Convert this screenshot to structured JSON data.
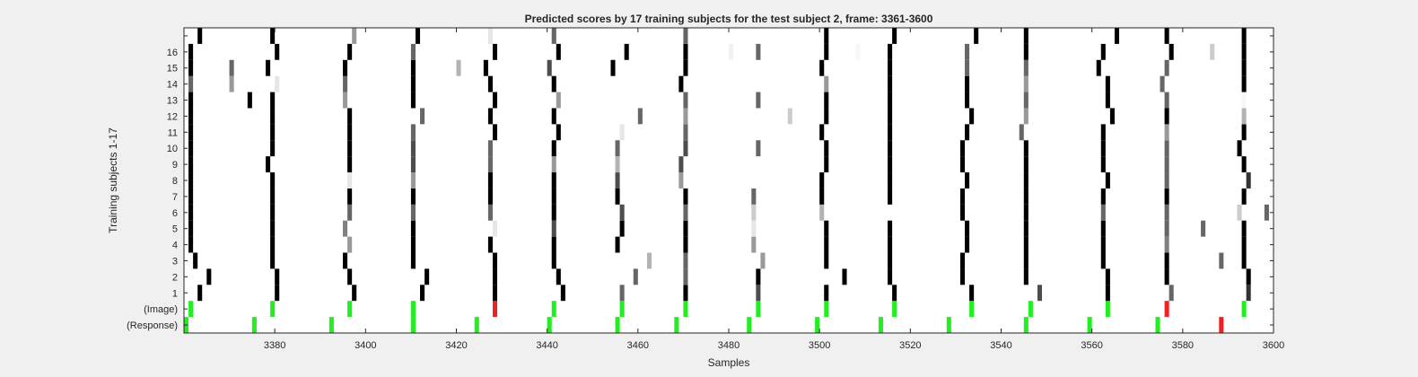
{
  "chart_data": {
    "type": "heatmap",
    "title": "Predicted scores by 17 training subjects for the test subject 2, frame: 3361-3600",
    "xlabel": "Samples",
    "ylabel": "Training subjects 1-17",
    "xlim": [
      3361,
      3600
    ],
    "x_ticks": [
      "3380",
      "3400",
      "3420",
      "3440",
      "3460",
      "3480",
      "3500",
      "3520",
      "3540",
      "3560",
      "3580",
      "3600"
    ],
    "row_labels": [
      "(Response)",
      "(Image)",
      "1",
      "2",
      "3",
      "4",
      "5",
      "6",
      "7",
      "8",
      "9",
      "10",
      "11",
      "12",
      "13",
      "14",
      "15",
      "16",
      ""
    ],
    "colors": {
      "background": "#ffffff",
      "correct": "#22ee22",
      "incorrect": "#ee2222",
      "figure": "#f0f0f0"
    },
    "response_marks": [
      {
        "x": 3361,
        "status": "correct"
      },
      {
        "x": 3376,
        "status": "correct"
      },
      {
        "x": 3393,
        "status": "correct"
      },
      {
        "x": 3411,
        "status": "correct"
      },
      {
        "x": 3425,
        "status": "correct"
      },
      {
        "x": 3441,
        "status": "correct"
      },
      {
        "x": 3456,
        "status": "correct"
      },
      {
        "x": 3469,
        "status": "correct"
      },
      {
        "x": 3485,
        "status": "correct"
      },
      {
        "x": 3500,
        "status": "correct"
      },
      {
        "x": 3514,
        "status": "correct"
      },
      {
        "x": 3529,
        "status": "correct"
      },
      {
        "x": 3546,
        "status": "correct"
      },
      {
        "x": 3560,
        "status": "correct"
      },
      {
        "x": 3575,
        "status": "correct"
      },
      {
        "x": 3589,
        "status": "incorrect"
      }
    ],
    "image_marks": [
      {
        "x": 3362,
        "status": "correct"
      },
      {
        "x": 3380,
        "status": "correct"
      },
      {
        "x": 3397,
        "status": "correct"
      },
      {
        "x": 3411,
        "status": "correct"
      },
      {
        "x": 3429,
        "status": "incorrect"
      },
      {
        "x": 3442,
        "status": "correct"
      },
      {
        "x": 3457,
        "status": "correct"
      },
      {
        "x": 3471,
        "status": "correct"
      },
      {
        "x": 3487,
        "status": "correct"
      },
      {
        "x": 3502,
        "status": "correct"
      },
      {
        "x": 3517,
        "status": "correct"
      },
      {
        "x": 3534,
        "status": "correct"
      },
      {
        "x": 3547,
        "status": "correct"
      },
      {
        "x": 3564,
        "status": "correct"
      },
      {
        "x": 3577,
        "status": "incorrect"
      },
      {
        "x": 3594,
        "status": "correct"
      }
    ],
    "subjects": [
      {
        "subject": 1,
        "cells": [
          [
            3364,
            0
          ],
          [
            3381,
            0
          ],
          [
            3398,
            0
          ],
          [
            3413,
            0
          ],
          [
            3429,
            0
          ],
          [
            3444,
            0
          ],
          [
            3457,
            0.4
          ],
          [
            3471,
            0
          ],
          [
            3487,
            0.3
          ],
          [
            3502,
            0
          ],
          [
            3517,
            0
          ],
          [
            3534,
            0
          ],
          [
            3549,
            0.3
          ],
          [
            3564,
            0
          ],
          [
            3578,
            0.4
          ],
          [
            3595,
            0.2
          ]
        ]
      },
      {
        "subject": 2,
        "cells": [
          [
            3366,
            0
          ],
          [
            3381,
            0
          ],
          [
            3397,
            0
          ],
          [
            3414,
            0
          ],
          [
            3429,
            0
          ],
          [
            3443,
            0
          ],
          [
            3460,
            0.4
          ],
          [
            3471,
            0.4
          ],
          [
            3487,
            0
          ],
          [
            3506,
            0
          ],
          [
            3516,
            0
          ],
          [
            3532,
            0
          ],
          [
            3546,
            0
          ],
          [
            3564,
            0
          ],
          [
            3577,
            0
          ],
          [
            3595,
            0
          ]
        ]
      },
      {
        "subject": 3,
        "cells": [
          [
            3363,
            0
          ],
          [
            3380,
            0
          ],
          [
            3396,
            0
          ],
          [
            3411,
            0
          ],
          [
            3429,
            0
          ],
          [
            3442,
            0
          ],
          [
            3463,
            0.7
          ],
          [
            3471,
            0.4
          ],
          [
            3488,
            0.6
          ],
          [
            3502,
            0
          ],
          [
            3516,
            0
          ],
          [
            3532,
            0
          ],
          [
            3546,
            0
          ],
          [
            3563,
            0
          ],
          [
            3577,
            0
          ],
          [
            3589,
            0.4
          ],
          [
            3594,
            0
          ]
        ]
      },
      {
        "subject": 4,
        "cells": [
          [
            3362,
            0
          ],
          [
            3380,
            0
          ],
          [
            3397,
            0.6
          ],
          [
            3411,
            0
          ],
          [
            3428,
            0
          ],
          [
            3442,
            0
          ],
          [
            3456,
            0
          ],
          [
            3471,
            0
          ],
          [
            3486,
            0.6
          ],
          [
            3502,
            0
          ],
          [
            3516,
            0
          ],
          [
            3533,
            0
          ],
          [
            3546,
            0
          ],
          [
            3563,
            0
          ],
          [
            3577,
            0.5
          ],
          [
            3594,
            0
          ]
        ]
      },
      {
        "subject": 5,
        "cells": [
          [
            3362,
            0
          ],
          [
            3380,
            0
          ],
          [
            3396,
            0.5
          ],
          [
            3411,
            0
          ],
          [
            3429,
            0.9
          ],
          [
            3442,
            0.3
          ],
          [
            3457,
            0
          ],
          [
            3471,
            0
          ],
          [
            3486,
            0.9
          ],
          [
            3502,
            0
          ],
          [
            3516,
            0
          ],
          [
            3533,
            0
          ],
          [
            3546,
            0
          ],
          [
            3563,
            0
          ],
          [
            3577,
            0.4
          ],
          [
            3585,
            0.4
          ],
          [
            3594,
            0
          ]
        ]
      },
      {
        "subject": 6,
        "cells": [
          [
            3362,
            0
          ],
          [
            3380,
            0
          ],
          [
            3397,
            0.4
          ],
          [
            3411,
            0.4
          ],
          [
            3428,
            0.4
          ],
          [
            3442,
            0
          ],
          [
            3457,
            0.3
          ],
          [
            3471,
            0.4
          ],
          [
            3486,
            0.8
          ],
          [
            3501,
            0.7
          ],
          [
            3532,
            0
          ],
          [
            3546,
            0
          ],
          [
            3563,
            0.4
          ],
          [
            3577,
            0.4
          ],
          [
            3593,
            0.8
          ],
          [
            3599,
            0.4
          ]
        ]
      },
      {
        "subject": 7,
        "cells": [
          [
            3362,
            0
          ],
          [
            3380,
            0
          ],
          [
            3397,
            0
          ],
          [
            3411,
            0
          ],
          [
            3428,
            0
          ],
          [
            3442,
            0
          ],
          [
            3456,
            0
          ],
          [
            3471,
            0
          ],
          [
            3486,
            0.4
          ],
          [
            3501,
            0
          ],
          [
            3516,
            0
          ],
          [
            3532,
            0
          ],
          [
            3546,
            0
          ],
          [
            3563,
            0
          ],
          [
            3577,
            0
          ],
          [
            3594,
            0
          ]
        ]
      },
      {
        "subject": 8,
        "cells": [
          [
            3362,
            0
          ],
          [
            3380,
            0
          ],
          [
            3397,
            0.9
          ],
          [
            3411,
            0.6
          ],
          [
            3428,
            0
          ],
          [
            3442,
            0
          ],
          [
            3456,
            0.3
          ],
          [
            3470,
            0.6
          ],
          [
            3501,
            0
          ],
          [
            3516,
            0
          ],
          [
            3533,
            0
          ],
          [
            3546,
            0
          ],
          [
            3564,
            0
          ],
          [
            3577,
            0.4
          ],
          [
            3595,
            0.2
          ]
        ]
      },
      {
        "subject": 9,
        "cells": [
          [
            3362,
            0
          ],
          [
            3379,
            0
          ],
          [
            3397,
            0
          ],
          [
            3411,
            0.3
          ],
          [
            3428,
            0.4
          ],
          [
            3442,
            0.6
          ],
          [
            3456,
            0.7
          ],
          [
            3470,
            0.3
          ],
          [
            3502,
            0
          ],
          [
            3516,
            0
          ],
          [
            3532,
            0
          ],
          [
            3546,
            0
          ],
          [
            3563,
            0
          ],
          [
            3577,
            0.4
          ],
          [
            3594,
            0
          ]
        ]
      },
      {
        "subject": 10,
        "cells": [
          [
            3362,
            0
          ],
          [
            3380,
            0
          ],
          [
            3397,
            0
          ],
          [
            3411,
            0.3
          ],
          [
            3428,
            0.4
          ],
          [
            3442,
            0
          ],
          [
            3456,
            0.4
          ],
          [
            3471,
            0.3
          ],
          [
            3487,
            0.4
          ],
          [
            3502,
            0
          ],
          [
            3516,
            0
          ],
          [
            3532,
            0
          ],
          [
            3546,
            0
          ],
          [
            3563,
            0
          ],
          [
            3577,
            0.4
          ],
          [
            3593,
            0
          ]
        ]
      },
      {
        "subject": 11,
        "cells": [
          [
            3362,
            0
          ],
          [
            3380,
            0
          ],
          [
            3397,
            0
          ],
          [
            3411,
            0.4
          ],
          [
            3429,
            0
          ],
          [
            3443,
            0
          ],
          [
            3457,
            0.9
          ],
          [
            3471,
            0.4
          ],
          [
            3501,
            0
          ],
          [
            3516,
            0
          ],
          [
            3533,
            0
          ],
          [
            3545,
            0.4
          ],
          [
            3563,
            0
          ],
          [
            3577,
            0.6
          ],
          [
            3594,
            0
          ]
        ]
      },
      {
        "subject": 12,
        "cells": [
          [
            3362,
            0
          ],
          [
            3380,
            0
          ],
          [
            3397,
            0
          ],
          [
            3413,
            0.4
          ],
          [
            3428,
            0
          ],
          [
            3442,
            0
          ],
          [
            3461,
            0.4
          ],
          [
            3471,
            0.6
          ],
          [
            3494,
            0.8
          ],
          [
            3502,
            0
          ],
          [
            3516,
            0
          ],
          [
            3534,
            0
          ],
          [
            3546,
            0.6
          ],
          [
            3565,
            0
          ],
          [
            3577,
            0
          ],
          [
            3594,
            0.7
          ]
        ]
      },
      {
        "subject": 13,
        "cells": [
          [
            3362,
            0
          ],
          [
            3375,
            0
          ],
          [
            3380,
            0
          ],
          [
            3396,
            0.6
          ],
          [
            3411,
            0
          ],
          [
            3429,
            0
          ],
          [
            3443,
            0.6
          ],
          [
            3471,
            0.4
          ],
          [
            3487,
            0.4
          ],
          [
            3502,
            0
          ],
          [
            3516,
            0
          ],
          [
            3533,
            0
          ],
          [
            3546,
            0.4
          ],
          [
            3564,
            0
          ],
          [
            3577,
            0.4
          ],
          [
            3594,
            0.97
          ]
        ]
      },
      {
        "subject": 14,
        "cells": [
          [
            3362,
            0.4
          ],
          [
            3371,
            0.6
          ],
          [
            3381,
            0.9
          ],
          [
            3396,
            0.4
          ],
          [
            3411,
            0
          ],
          [
            3428,
            0
          ],
          [
            3442,
            0
          ],
          [
            3470,
            0
          ],
          [
            3502,
            0.6
          ],
          [
            3516,
            0
          ],
          [
            3533,
            0
          ],
          [
            3546,
            0.6
          ],
          [
            3564,
            0
          ],
          [
            3576,
            0.4
          ],
          [
            3594,
            0
          ]
        ]
      },
      {
        "subject": 15,
        "cells": [
          [
            3362,
            0
          ],
          [
            3371,
            0.4
          ],
          [
            3379,
            0
          ],
          [
            3396,
            0
          ],
          [
            3411,
            0
          ],
          [
            3421,
            0.7
          ],
          [
            3427,
            0
          ],
          [
            3441,
            0.3
          ],
          [
            3455,
            0
          ],
          [
            3471,
            0
          ],
          [
            3501,
            0
          ],
          [
            3516,
            0
          ],
          [
            3533,
            0.4
          ],
          [
            3546,
            0.4
          ],
          [
            3562,
            0
          ],
          [
            3577,
            0.4
          ],
          [
            3594,
            0
          ]
        ]
      },
      {
        "subject": 16,
        "cells": [
          [
            3362,
            0
          ],
          [
            3381,
            0
          ],
          [
            3397,
            0
          ],
          [
            3411,
            0.4
          ],
          [
            3429,
            0
          ],
          [
            3443,
            0
          ],
          [
            3458,
            0
          ],
          [
            3471,
            0
          ],
          [
            3481,
            0.95
          ],
          [
            3487,
            0.4
          ],
          [
            3502,
            0
          ],
          [
            3509,
            0.97
          ],
          [
            3516,
            0
          ],
          [
            3533,
            0.4
          ],
          [
            3546,
            0
          ],
          [
            3563,
            0
          ],
          [
            3578,
            0
          ],
          [
            3587,
            0.8
          ],
          [
            3594,
            0
          ]
        ]
      },
      {
        "subject": 17,
        "cells": [
          [
            3364,
            0
          ],
          [
            3380,
            0
          ],
          [
            3398,
            0.6
          ],
          [
            3412,
            0
          ],
          [
            3428,
            0.9
          ],
          [
            3442,
            0.4
          ],
          [
            3471,
            0.4
          ],
          [
            3502,
            0
          ],
          [
            3517,
            0
          ],
          [
            3535,
            0
          ],
          [
            3546,
            0
          ],
          [
            3566,
            0
          ],
          [
            3577,
            0
          ],
          [
            3594,
            0
          ]
        ]
      }
    ]
  }
}
